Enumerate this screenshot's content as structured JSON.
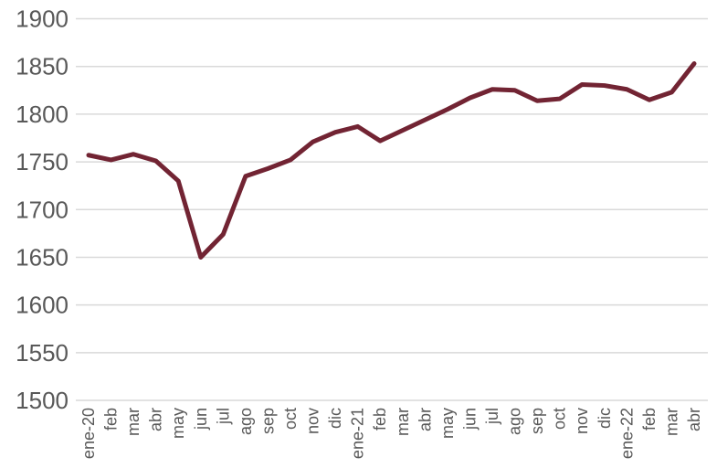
{
  "chart_data": {
    "type": "line",
    "categories": [
      "ene-20",
      "feb",
      "mar",
      "abr",
      "may",
      "jun",
      "jul",
      "ago",
      "sep",
      "oct",
      "nov",
      "dic",
      "ene-21",
      "feb",
      "mar",
      "abr",
      "may",
      "jun",
      "jul",
      "ago",
      "sep",
      "oct",
      "nov",
      "dic",
      "ene-22",
      "feb",
      "mar",
      "abr"
    ],
    "series": [
      {
        "name": "serie",
        "values": [
          1757,
          1752,
          1758,
          1751,
          1730,
          1650,
          1674,
          1735,
          1743,
          1752,
          1771,
          1781,
          1787,
          1772,
          1783,
          1794,
          1805,
          1817,
          1826,
          1825,
          1814,
          1816,
          1831,
          1830,
          1826,
          1815,
          1823,
          1853
        ]
      }
    ],
    "title": "",
    "xlabel": "",
    "ylabel": "",
    "ylim": [
      1500,
      1900
    ],
    "yticks": [
      1500,
      1550,
      1600,
      1650,
      1700,
      1750,
      1800,
      1850,
      1900
    ],
    "grid": "horizontal",
    "legend": "none",
    "colors": {
      "line": "#722433",
      "axis_labels": "#595959",
      "gridlines": "#d9d9d9",
      "background": "#ffffff"
    }
  }
}
